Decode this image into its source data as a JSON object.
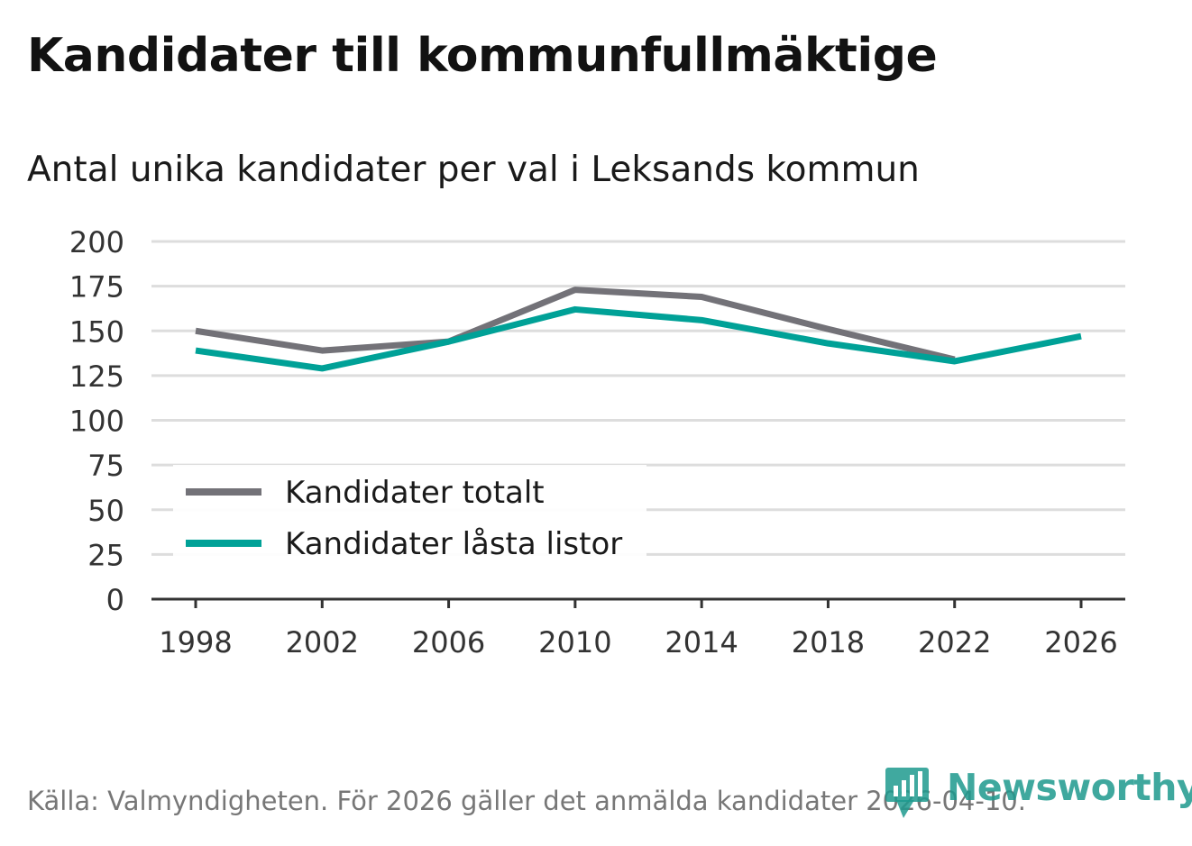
{
  "header": {
    "title": "Kandidater till kommunfullmäktige",
    "subtitle": "Antal unika kandidater per val i Leksands kommun"
  },
  "footer": {
    "source": "Källa: Valmyndigheten. För 2026 gäller det anmälda kandidater 2026-04-10."
  },
  "logo": {
    "text": "Newsworthy",
    "color": "#1e9a8e"
  },
  "chart_data": {
    "type": "line",
    "x": [
      "1998",
      "2002",
      "2006",
      "2010",
      "2014",
      "2018",
      "2022",
      "2026"
    ],
    "series": [
      {
        "name": "Kandidater totalt",
        "color": "#737278",
        "values": [
          150,
          139,
          144,
          173,
          169,
          151,
          134,
          null
        ]
      },
      {
        "name": "Kandidater låsta listor",
        "color": "#00a197",
        "values": [
          139,
          129,
          144,
          162,
          156,
          143,
          133,
          147
        ]
      }
    ],
    "y_ticks": [
      0,
      25,
      50,
      75,
      100,
      125,
      150,
      175,
      200
    ],
    "ylim": [
      0,
      200
    ],
    "title": "Kandidater till kommunfullmäktige",
    "xlabel": "",
    "ylabel": "",
    "legend_position": "lower-left",
    "grid": true
  }
}
